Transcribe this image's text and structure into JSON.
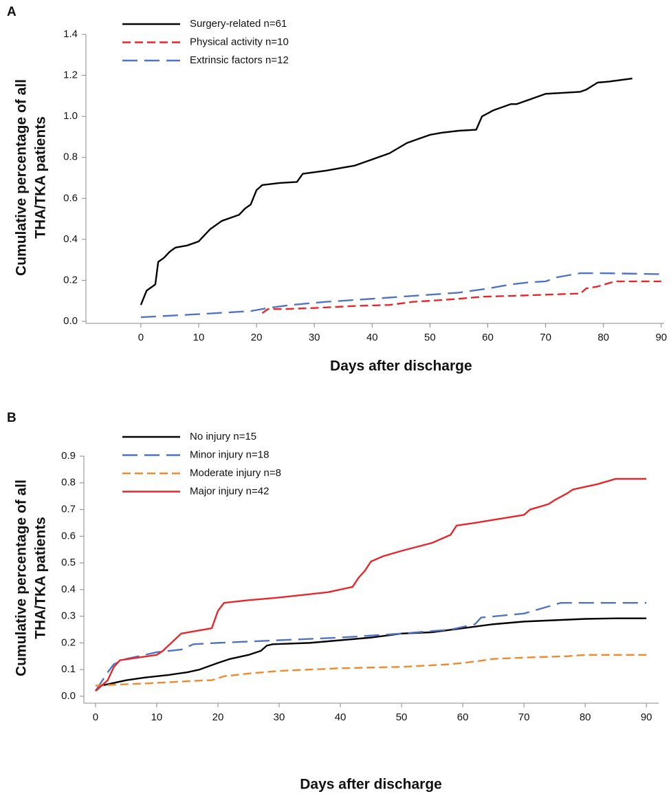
{
  "chart_data": [
    {
      "type": "line",
      "panel": "A",
      "y_label": [
        "Cumulative percentage of all",
        "THA/TKA patients"
      ],
      "x_label": "Days after discharge",
      "xlim": [
        -9.5,
        90.5
      ],
      "ylim": [
        -0.01,
        1.4
      ],
      "xticks": [
        0,
        10,
        20,
        30,
        40,
        50,
        60,
        70,
        80,
        90
      ],
      "yticks": [
        {
          "value": 0,
          "label": "0.0"
        },
        0.2,
        0.4,
        0.6,
        0.8,
        {
          "value": 1,
          "label": "1.0"
        },
        1.2,
        1.4
      ],
      "series": [
        {
          "name": "Surgery-related n=61",
          "color": "#000000",
          "style": "solid",
          "x": [
            0,
            1,
            2,
            2.5,
            3,
            4,
            5,
            6,
            8,
            10,
            12,
            14,
            16,
            17,
            18,
            19,
            20,
            21,
            24,
            27,
            28,
            32,
            35,
            37,
            40,
            43,
            46,
            48,
            50,
            52,
            55,
            58,
            59,
            61,
            64,
            65,
            67,
            70,
            73,
            76,
            77,
            79,
            81,
            85
          ],
          "values": [
            0.08,
            0.15,
            0.17,
            0.18,
            0.29,
            0.31,
            0.34,
            0.36,
            0.37,
            0.39,
            0.45,
            0.49,
            0.51,
            0.52,
            0.55,
            0.57,
            0.64,
            0.665,
            0.675,
            0.68,
            0.72,
            0.735,
            0.75,
            0.76,
            0.79,
            0.82,
            0.87,
            0.89,
            0.91,
            0.92,
            0.93,
            0.935,
            1.0,
            1.03,
            1.06,
            1.06,
            1.08,
            1.11,
            1.115,
            1.12,
            1.13,
            1.165,
            1.17,
            1.185
          ]
        },
        {
          "name": "Physical activity n=10",
          "color": "#e8262a",
          "style": "dashed",
          "x": [
            21,
            22,
            25,
            30,
            37,
            43,
            47,
            50,
            55,
            59,
            65,
            75,
            76,
            77,
            79,
            82,
            90
          ],
          "values": [
            0.04,
            0.06,
            0.06,
            0.065,
            0.075,
            0.08,
            0.095,
            0.1,
            0.11,
            0.12,
            0.125,
            0.135,
            0.135,
            0.16,
            0.17,
            0.195,
            0.195
          ]
        },
        {
          "name": "Extrinsic factors n=12",
          "color": "#4f74c2",
          "style": "long-dashed",
          "x": [
            0,
            10,
            19,
            22,
            26,
            32,
            40,
            50,
            55,
            60,
            64,
            67,
            70,
            72,
            76,
            80,
            90
          ],
          "values": [
            0.02,
            0.035,
            0.05,
            0.065,
            0.08,
            0.095,
            0.11,
            0.13,
            0.14,
            0.16,
            0.18,
            0.19,
            0.195,
            0.215,
            0.235,
            0.235,
            0.23
          ]
        }
      ]
    },
    {
      "type": "line",
      "panel": "B",
      "y_label": [
        "Cumulative percentage of all",
        "THA/TKA patients"
      ],
      "x_label": "Days after discharge",
      "xlim": [
        -1.9,
        92
      ],
      "ylim": [
        -0.026,
        0.9
      ],
      "xticks": [
        0,
        10,
        20,
        30,
        40,
        50,
        60,
        70,
        80,
        90
      ],
      "yticks": [
        {
          "value": 0,
          "label": "0.0"
        },
        0.1,
        0.2,
        0.3,
        0.4,
        0.5,
        0.6,
        0.7,
        0.8,
        0.9
      ],
      "series": [
        {
          "name": "No injury n=15",
          "color": "#000000",
          "style": "solid",
          "x": [
            0,
            1,
            3,
            5,
            8,
            12,
            15,
            17,
            20,
            22,
            25,
            27,
            28,
            29,
            35,
            40,
            45,
            50,
            55,
            60,
            65,
            70,
            80,
            85,
            90
          ],
          "values": [
            0.02,
            0.04,
            0.05,
            0.06,
            0.07,
            0.08,
            0.09,
            0.1,
            0.125,
            0.14,
            0.155,
            0.17,
            0.19,
            0.195,
            0.2,
            0.21,
            0.22,
            0.235,
            0.24,
            0.255,
            0.27,
            0.28,
            0.29,
            0.292,
            0.292
          ]
        },
        {
          "name": "Minor injury n=18",
          "color": "#4f74c2",
          "style": "long-dashed",
          "x": [
            0,
            2,
            3,
            5,
            8,
            10,
            14,
            16,
            20,
            30,
            40,
            50,
            58,
            62,
            63,
            70,
            76,
            90
          ],
          "values": [
            0.02,
            0.09,
            0.12,
            0.14,
            0.155,
            0.165,
            0.175,
            0.195,
            0.2,
            0.21,
            0.22,
            0.235,
            0.25,
            0.27,
            0.295,
            0.31,
            0.35,
            0.35
          ]
        },
        {
          "name": "Moderate injury n=8",
          "color": "#f0892b",
          "style": "dashed",
          "x": [
            0,
            5,
            10,
            18,
            19,
            21,
            25,
            30,
            40,
            50,
            58,
            62,
            65,
            70,
            77,
            80,
            90
          ],
          "values": [
            0.04,
            0.045,
            0.05,
            0.06,
            0.06,
            0.075,
            0.085,
            0.095,
            0.105,
            0.11,
            0.12,
            0.13,
            0.14,
            0.145,
            0.15,
            0.155,
            0.155
          ]
        },
        {
          "name": "Major injury n=42",
          "color": "#e8262a",
          "style": "solid",
          "x": [
            0,
            1,
            2,
            3,
            4,
            7,
            10,
            11,
            14,
            19,
            20,
            21,
            25,
            30,
            38,
            42,
            43,
            44,
            45,
            47,
            50,
            55,
            58,
            59,
            62,
            70,
            71,
            74,
            75,
            77,
            78,
            82,
            85,
            90
          ],
          "values": [
            0.02,
            0.04,
            0.06,
            0.11,
            0.135,
            0.145,
            0.155,
            0.17,
            0.235,
            0.255,
            0.32,
            0.35,
            0.36,
            0.37,
            0.39,
            0.41,
            0.445,
            0.47,
            0.505,
            0.525,
            0.545,
            0.575,
            0.605,
            0.64,
            0.65,
            0.68,
            0.7,
            0.72,
            0.735,
            0.76,
            0.775,
            0.795,
            0.815,
            0.815
          ]
        }
      ]
    }
  ]
}
